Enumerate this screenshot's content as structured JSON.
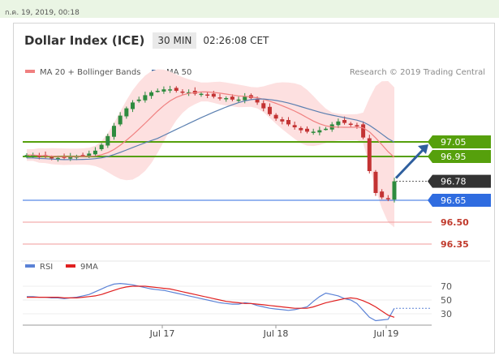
{
  "topbar": {
    "timestamp": "ก.ค. 19, 2019, 00:18"
  },
  "header": {
    "title": "Dollar Index (ICE)",
    "timeframe": "30 MIN",
    "time": "02:26:08 CET"
  },
  "legend": {
    "ma20_label": "MA 20 + Bollinger Bands",
    "ma50_label": "MA 50",
    "credit": "Research © 2019 Trading Central"
  },
  "rsi_legend": {
    "rsi_label": "RSI",
    "ma_label": "9MA"
  },
  "colors": {
    "candle_up": "#2e8b3e",
    "candle_down": "#c33333",
    "ma20": "#f08080",
    "ma50": "#5a7fb0",
    "band_fill": "#fde0e0",
    "resistance": "#56a00c",
    "support_blue": "#2f6ce0",
    "support_red": "#f19a9a",
    "current": "#333333",
    "arrow": "#2f5f9e",
    "rsi": "#5b82d6",
    "rsi_ma": "#e02020"
  },
  "chart_data": {
    "type": "candlestick",
    "x_ticks": [
      "Jul 17",
      "Jul 18",
      "Jul 19"
    ],
    "levels": [
      {
        "value": 97.05,
        "label": "97.05",
        "kind": "resistance"
      },
      {
        "value": 96.95,
        "label": "96.95",
        "kind": "resistance"
      },
      {
        "value": 96.78,
        "label": "96.78",
        "kind": "current"
      },
      {
        "value": 96.65,
        "label": "96.65",
        "kind": "support-strong"
      },
      {
        "value": 96.5,
        "label": "96.50",
        "kind": "support"
      },
      {
        "value": 96.35,
        "label": "96.35",
        "kind": "support"
      }
    ],
    "price_close": [
      96.96,
      96.96,
      96.95,
      96.95,
      96.94,
      96.94,
      96.94,
      96.95,
      96.95,
      96.96,
      96.97,
      96.99,
      97.03,
      97.09,
      97.16,
      97.23,
      97.28,
      97.32,
      97.34,
      97.37,
      97.39,
      97.4,
      97.41,
      97.41,
      97.4,
      97.39,
      97.39,
      97.38,
      97.38,
      97.37,
      97.36,
      97.35,
      97.35,
      97.34,
      97.34,
      97.36,
      97.35,
      97.32,
      97.28,
      97.24,
      97.21,
      97.19,
      97.17,
      97.15,
      97.13,
      97.12,
      97.12,
      97.13,
      97.14,
      97.17,
      97.19,
      97.18,
      97.17,
      97.16,
      97.08,
      96.85,
      96.7,
      96.67,
      96.66,
      96.78
    ],
    "rsi_ticks": [
      70,
      50,
      30
    ],
    "rsi": [
      55,
      55,
      54,
      54,
      53,
      53,
      52,
      53,
      54,
      56,
      58,
      62,
      66,
      70,
      73,
      74,
      73,
      72,
      70,
      68,
      66,
      65,
      64,
      62,
      60,
      58,
      56,
      54,
      52,
      50,
      48,
      46,
      45,
      44,
      44,
      46,
      45,
      42,
      40,
      38,
      37,
      36,
      35,
      36,
      38,
      40,
      48,
      55,
      60,
      58,
      56,
      52,
      50,
      45,
      35,
      25,
      20,
      21,
      22,
      38
    ],
    "rsi_ma": [
      54,
      54,
      54,
      54,
      54,
      54,
      53,
      53,
      53,
      54,
      55,
      56,
      58,
      61,
      64,
      67,
      69,
      70,
      70,
      70,
      69,
      68,
      67,
      66,
      64,
      62,
      60,
      58,
      56,
      54,
      52,
      50,
      48,
      47,
      46,
      45,
      45,
      44,
      43,
      42,
      41,
      40,
      39,
      38,
      38,
      38,
      40,
      43,
      46,
      48,
      50,
      52,
      53,
      52,
      49,
      45,
      40,
      34,
      28,
      25
    ]
  }
}
